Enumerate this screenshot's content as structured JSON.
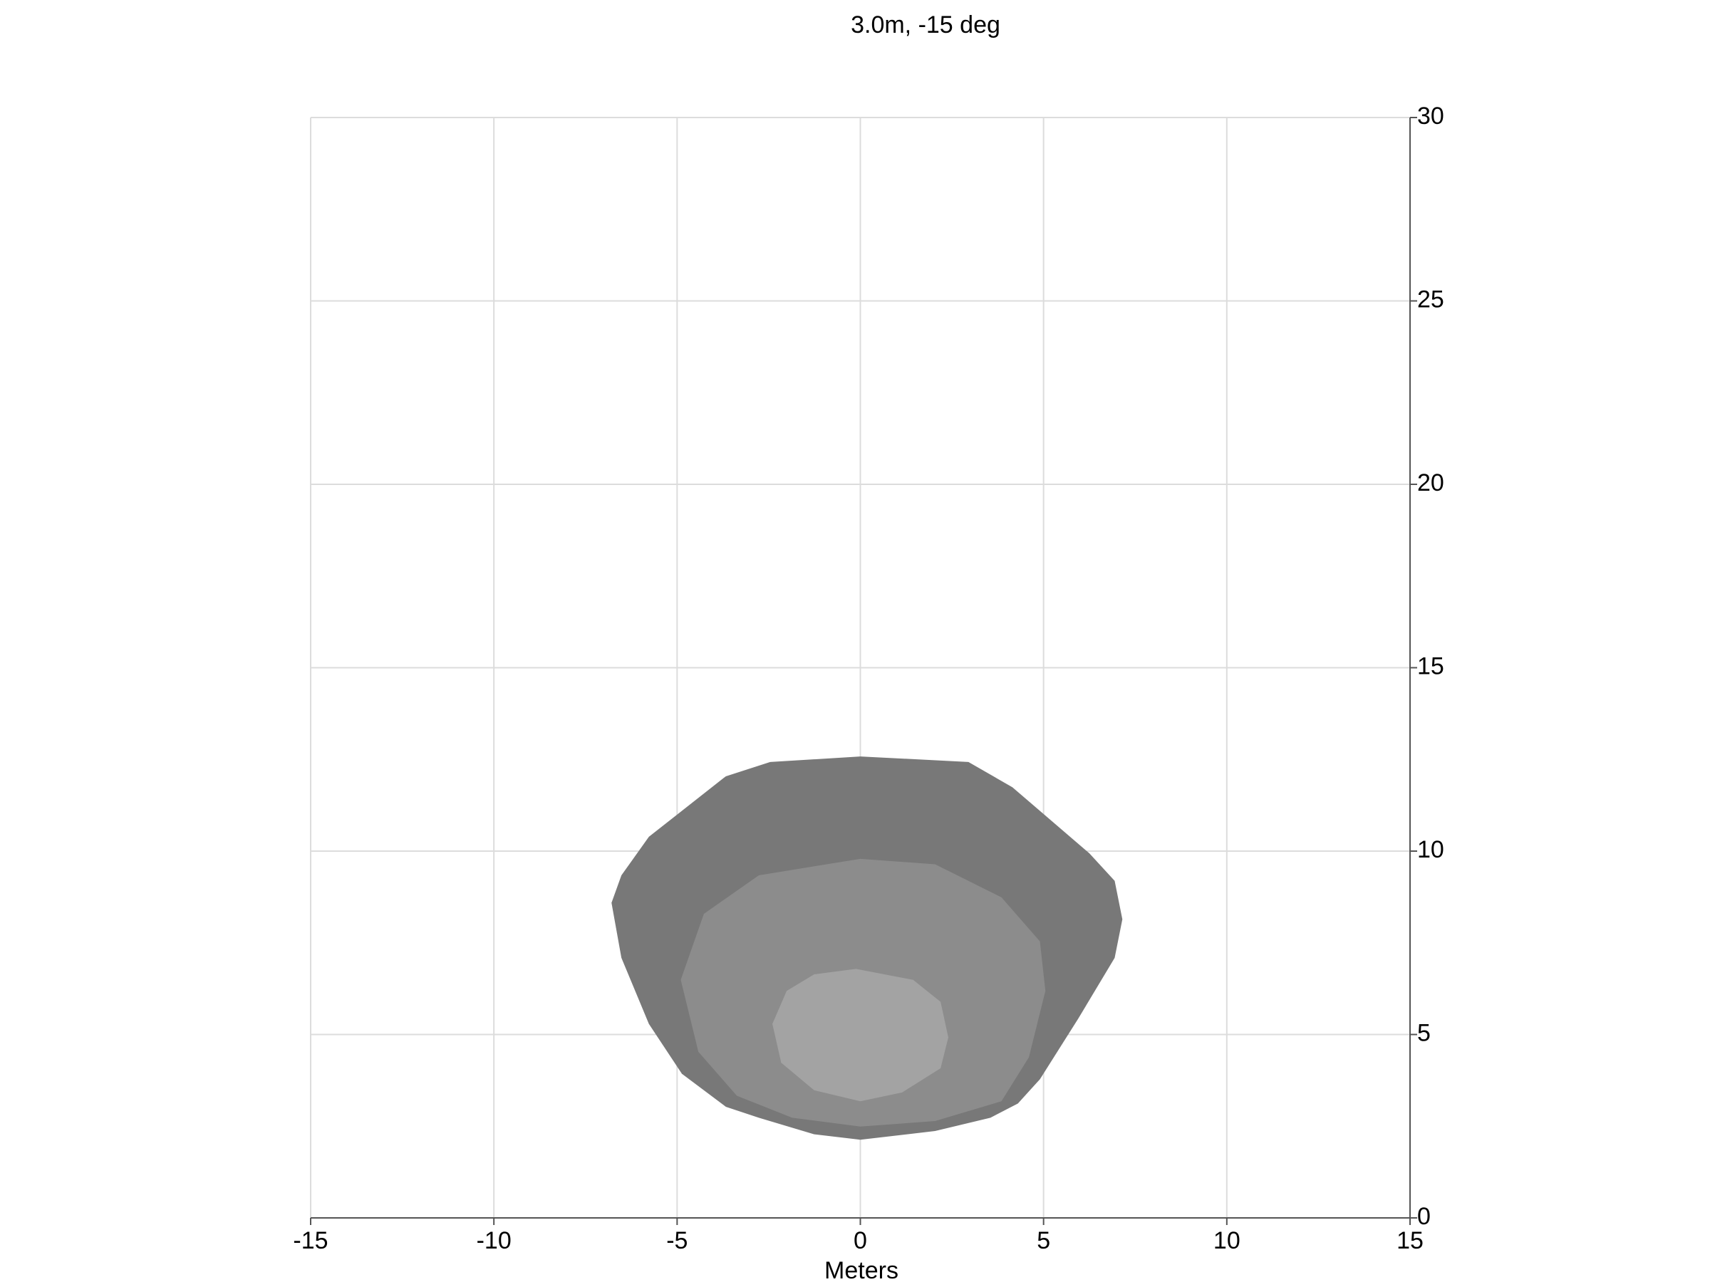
{
  "chart_data": {
    "type": "contour",
    "title": "3.0m, -15 deg",
    "x_label": "Meters",
    "xlim": [
      -15,
      15
    ],
    "ylim": [
      0,
      30
    ],
    "xticks": [
      -15,
      -10,
      -5,
      0,
      5,
      10,
      15
    ],
    "yticks": [
      0,
      5,
      10,
      15,
      20,
      25,
      30
    ],
    "grid": true,
    "y_axis_side": "right",
    "series": [
      {
        "color": "#787878",
        "x": [
          0,
          2.95,
          4.15,
          6.25,
          6.94,
          7.15,
          6.94,
          5.95,
          4.9,
          4.3,
          3.55,
          2.04,
          0,
          -1.26,
          -2.77,
          -3.67,
          -4.87,
          -5.77,
          -6.52,
          -6.79,
          -6.52,
          -5.77,
          -3.67,
          -2.46
        ],
        "y": [
          12.58,
          12.43,
          11.74,
          9.94,
          9.19,
          8.14,
          7.09,
          5.44,
          3.78,
          3.12,
          2.73,
          2.37,
          2.13,
          2.28,
          2.73,
          3.03,
          3.93,
          5.29,
          7.09,
          8.59,
          9.34,
          10.39,
          12.04,
          12.43
        ]
      },
      {
        "color": "#8c8c8c",
        "x": [
          0,
          2.04,
          3.85,
          4.9,
          5.05,
          4.6,
          3.85,
          2.04,
          0,
          -1.86,
          -3.37,
          -4.42,
          -4.9,
          -4.27,
          -2.77
        ],
        "y": [
          9.79,
          9.64,
          8.74,
          7.54,
          6.19,
          4.38,
          3.18,
          2.64,
          2.49,
          2.73,
          3.33,
          4.53,
          6.49,
          8.29,
          9.34
        ]
      },
      {
        "color": "#a3a3a3",
        "x": [
          -0.12,
          1.44,
          2.19,
          2.4,
          2.19,
          1.14,
          0,
          -1.26,
          -2.16,
          -2.4,
          -2.01,
          -1.26
        ],
        "y": [
          6.79,
          6.49,
          5.89,
          4.92,
          4.08,
          3.42,
          3.18,
          3.48,
          4.23,
          5.29,
          6.19,
          6.64
        ]
      }
    ]
  }
}
